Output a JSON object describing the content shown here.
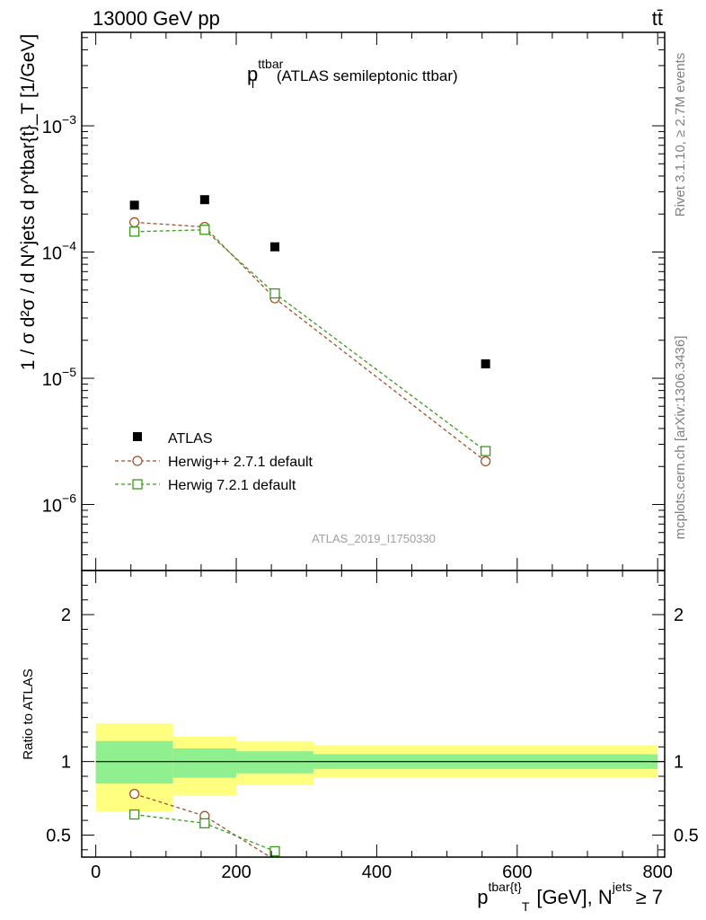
{
  "header": {
    "energy_label": "13000 GeV pp",
    "process_label": "tt̄"
  },
  "side_labels": {
    "rivet": "Rivet 3.1.10, ≥ 2.7M events",
    "mcplots": "mcplots.cern.ch [arXiv:1306.3436]"
  },
  "analysis_id": "ATLAS_2019_I1750330",
  "chart_data": [
    {
      "type": "scatter",
      "title_main": "p",
      "title_sup": "ttbar",
      "title_sub": "T",
      "title_rest": "(ATLAS semileptonic ttbar)",
      "ylabel": "1 / σ d²σ / d N^jets d p^tbar{t}_T [1/GeV]",
      "yscale": "log",
      "ylim": [
        3e-07,
        0.0055
      ],
      "xlim": [
        -20,
        810
      ],
      "y_ticks": [
        {
          "value": 1e-06,
          "base": "10",
          "exp": "−6"
        },
        {
          "value": 1e-05,
          "base": "10",
          "exp": "−5"
        },
        {
          "value": 0.0001,
          "base": "10",
          "exp": "−4"
        },
        {
          "value": 0.001,
          "base": "10",
          "exp": "−3"
        }
      ],
      "series": [
        {
          "name": "ATLAS",
          "marker": "filled-square",
          "color": "#000000",
          "x": [
            55,
            155,
            255,
            555
          ],
          "y": [
            0.000235,
            0.00026,
            0.00011,
            1.3e-05
          ]
        },
        {
          "name": "Herwig++ 2.7.1 default",
          "marker": "open-circle",
          "color": "#a0522d",
          "dashed": true,
          "x": [
            55,
            155,
            255,
            555
          ],
          "y": [
            0.000172,
            0.000158,
            4.3e-05,
            2.2e-06
          ]
        },
        {
          "name": "Herwig 7.2.1 default",
          "marker": "open-square",
          "color": "#3a9a1a",
          "dashed": true,
          "x": [
            55,
            155,
            255,
            555
          ],
          "y": [
            0.000145,
            0.00015,
            4.7e-05,
            2.65e-06
          ]
        }
      ],
      "legend": [
        {
          "label": "ATLAS"
        },
        {
          "label": "Herwig++ 2.7.1 default"
        },
        {
          "label": "Herwig 7.2.1 default"
        }
      ]
    },
    {
      "type": "scatter",
      "ylabel": "Ratio to ATLAS",
      "xlabel_main": "p",
      "xlabel_sup1": "tbar{t}",
      "xlabel_sub": "T",
      "xlabel_mid": "[GeV], N",
      "xlabel_sup2": "jets",
      "xlabel_end": "≥ 7",
      "xlim": [
        -20,
        810
      ],
      "ylim": [
        0.35,
        2.3
      ],
      "x_ticks": [
        0,
        200,
        400,
        600,
        800
      ],
      "x_tick_labels": [
        "0",
        "200",
        "400",
        "600",
        "800"
      ],
      "y_ticks": [
        0.5,
        1,
        2
      ],
      "y_tick_labels": [
        "0.5",
        "1",
        "2"
      ],
      "bands": [
        {
          "x0": 0,
          "x1": 110,
          "y1_lo": 0.85,
          "y1_hi": 1.14,
          "y2_lo": 0.66,
          "y2_hi": 1.26
        },
        {
          "x0": 110,
          "x1": 200,
          "y1_lo": 0.89,
          "y1_hi": 1.09,
          "y2_lo": 0.77,
          "y2_hi": 1.17
        },
        {
          "x0": 200,
          "x1": 310,
          "y1_lo": 0.92,
          "y1_hi": 1.07,
          "y2_lo": 0.84,
          "y2_hi": 1.14
        },
        {
          "x0": 310,
          "x1": 800,
          "y1_lo": 0.95,
          "y1_hi": 1.05,
          "y2_lo": 0.89,
          "y2_hi": 1.11
        }
      ],
      "series": [
        {
          "name": "Herwig++ 2.7.1 default",
          "marker": "open-circle",
          "color": "#a0522d",
          "x": [
            55,
            155,
            255
          ],
          "y": [
            0.78,
            0.63,
            0.33
          ]
        },
        {
          "name": "Herwig 7.2.1 default",
          "marker": "open-square",
          "color": "#3a9a1a",
          "x": [
            55,
            155,
            255
          ],
          "y": [
            0.64,
            0.58,
            0.39
          ]
        }
      ]
    }
  ]
}
